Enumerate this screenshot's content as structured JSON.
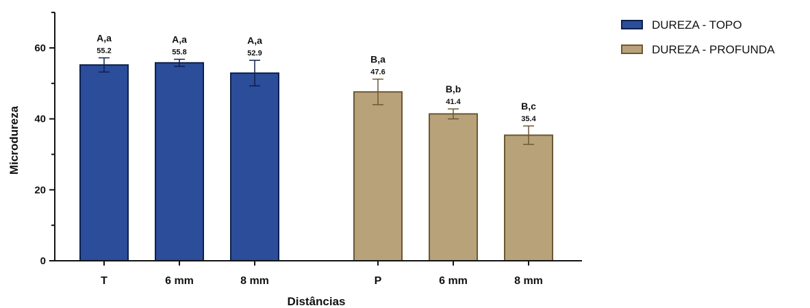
{
  "chart_data": {
    "type": "bar",
    "xlabel": "Distâncias",
    "ylabel": "Microdureza",
    "ylim": [
      0,
      70
    ],
    "yticks": [
      0,
      20,
      40,
      60
    ],
    "grid": false,
    "legend_position": "top-right",
    "series": [
      {
        "name": "DUREZA - TOPO",
        "color": "#2b4d9a",
        "edge": "#0d1f4d",
        "categories": [
          "T",
          "6 mm",
          "8 mm"
        ],
        "values": [
          55.2,
          55.8,
          52.9
        ],
        "errors": [
          2.0,
          1.0,
          3.6
        ],
        "value_labels": [
          "55.2",
          "55.8",
          "52.9"
        ],
        "group_labels": [
          "A,a",
          "A,a",
          "A,a"
        ]
      },
      {
        "name": "DUREZA - PROFUNDA",
        "color": "#b8a27a",
        "edge": "#6b5733",
        "categories": [
          "P",
          "6 mm",
          "8 mm"
        ],
        "values": [
          47.6,
          41.4,
          35.4
        ],
        "errors": [
          3.6,
          1.4,
          2.6
        ],
        "value_labels": [
          "47.6",
          "41.4",
          "35.4"
        ],
        "group_labels": [
          "B,a",
          "B,b",
          "B,c"
        ]
      }
    ]
  }
}
